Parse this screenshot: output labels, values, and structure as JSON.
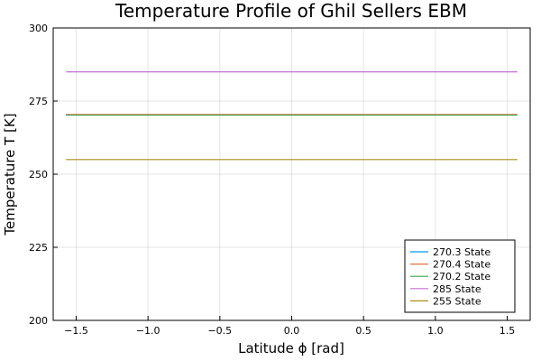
{
  "chart_data": {
    "type": "line",
    "title": "Temperature Profile of Ghil Sellers EBM",
    "xlabel": "Latitude ϕ [rad]",
    "ylabel": "Temperature T [K]",
    "xlim": [
      -1.66,
      1.66
    ],
    "ylim": [
      200,
      300
    ],
    "xticks": [
      -1.5,
      -1.0,
      -0.5,
      0.0,
      0.5,
      1.0,
      1.5
    ],
    "xtick_labels": [
      "−1.5",
      "−1.0",
      "−0.5",
      "0.0",
      "0.5",
      "1.0",
      "1.5"
    ],
    "yticks": [
      200,
      225,
      250,
      275,
      300
    ],
    "ytick_labels": [
      "200",
      "225",
      "250",
      "275",
      "300"
    ],
    "grid": true,
    "legend_position": "bottom-right",
    "series": [
      {
        "name": "270.3 State",
        "color": "#009af9",
        "x": [
          -1.5708,
          1.5708
        ],
        "y": [
          270.3,
          270.3
        ]
      },
      {
        "name": "270.4 State",
        "color": "#e26f46",
        "x": [
          -1.5708,
          1.5708
        ],
        "y": [
          270.4,
          270.4
        ]
      },
      {
        "name": "270.2 State",
        "color": "#3da44d",
        "x": [
          -1.5708,
          1.5708
        ],
        "y": [
          270.2,
          270.2
        ]
      },
      {
        "name": "285 State",
        "color": "#c271d2",
        "x": [
          -1.5708,
          1.5708
        ],
        "y": [
          285,
          285
        ]
      },
      {
        "name": "255 State",
        "color": "#ac8d18",
        "x": [
          -1.5708,
          1.5708
        ],
        "y": [
          255,
          255
        ]
      }
    ]
  }
}
